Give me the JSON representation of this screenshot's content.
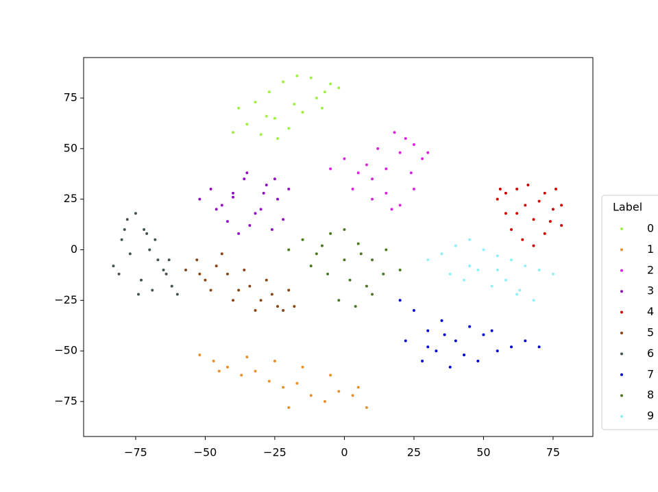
{
  "chart_data": {
    "type": "scatter",
    "xlim": [
      -93.7,
      89.3
    ],
    "ylim": [
      -92.3,
      95
    ],
    "xticks": [
      {
        "value": -75,
        "label": "−75"
      },
      {
        "value": -50,
        "label": "−50"
      },
      {
        "value": -25,
        "label": "−25"
      },
      0,
      25,
      50,
      75
    ],
    "yticks": [
      {
        "value": -75,
        "label": "−75"
      },
      {
        "value": -50,
        "label": "−50"
      },
      {
        "value": -25,
        "label": "−25"
      },
      0,
      25,
      50,
      75
    ],
    "legend_title": "Label",
    "legend_position": "right",
    "series": [
      {
        "name": "0",
        "color": "#9ef23f",
        "x": [
          -40,
          -35,
          -30,
          -25,
          -20,
          -15,
          -10,
          -5,
          -2,
          -38,
          -32,
          -27,
          -22,
          -17,
          -12,
          -7,
          -28,
          -18,
          -8,
          -24
        ],
        "y": [
          58,
          62,
          57,
          65,
          60,
          68,
          75,
          82,
          80,
          70,
          73,
          78,
          83,
          86,
          85,
          78,
          66,
          72,
          70,
          55
        ]
      },
      {
        "name": "1",
        "color": "#e8902a",
        "x": [
          -52,
          -47,
          -42,
          -37,
          -32,
          -27,
          -22,
          -17,
          -12,
          -7,
          -2,
          3,
          8,
          -45,
          -35,
          -25,
          -15,
          -5,
          5,
          -20
        ],
        "y": [
          -52,
          -55,
          -58,
          -62,
          -60,
          -65,
          -68,
          -66,
          -72,
          -75,
          -70,
          -72,
          -78,
          -60,
          -53,
          -55,
          -58,
          -62,
          -68,
          -78
        ]
      },
      {
        "name": "2",
        "color": "#e020e0",
        "x": [
          -5,
          0,
          5,
          10,
          15,
          20,
          25,
          28,
          22,
          18,
          12,
          8,
          3,
          15,
          20,
          25,
          30,
          10,
          17,
          24
        ],
        "y": [
          40,
          45,
          38,
          35,
          28,
          22,
          30,
          45,
          55,
          58,
          50,
          42,
          30,
          40,
          48,
          52,
          48,
          25,
          20,
          38
        ]
      },
      {
        "name": "3",
        "color": "#9010c0",
        "x": [
          -52,
          -48,
          -44,
          -40,
          -36,
          -32,
          -28,
          -24,
          -20,
          -22,
          -26,
          -30,
          -34,
          -38,
          -42,
          -46,
          -35,
          -29,
          -25,
          -40
        ],
        "y": [
          25,
          30,
          22,
          28,
          35,
          18,
          32,
          25,
          30,
          15,
          10,
          20,
          12,
          8,
          14,
          20,
          38,
          28,
          35,
          26
        ]
      },
      {
        "name": "4",
        "color": "#d00000",
        "x": [
          55,
          58,
          62,
          65,
          68,
          72,
          75,
          78,
          60,
          64,
          68,
          72,
          76,
          56,
          70,
          66,
          74,
          62,
          58,
          78
        ],
        "y": [
          25,
          18,
          30,
          22,
          15,
          28,
          20,
          12,
          10,
          5,
          2,
          8,
          30,
          30,
          24,
          32,
          14,
          18,
          28,
          22
        ]
      },
      {
        "name": "5",
        "color": "#8b4513",
        "x": [
          -57,
          -53,
          -50,
          -46,
          -42,
          -38,
          -34,
          -30,
          -26,
          -22,
          -18,
          -20,
          -28,
          -36,
          -44,
          -48,
          -40,
          -32,
          -24,
          -52
        ],
        "y": [
          -10,
          -5,
          -15,
          -8,
          -12,
          -20,
          -18,
          -25,
          -22,
          -30,
          -28,
          -20,
          -15,
          -10,
          -2,
          -20,
          -25,
          -30,
          -28,
          -12
        ]
      },
      {
        "name": "6",
        "color": "#475254",
        "x": [
          -83,
          -80,
          -78,
          -75,
          -72,
          -70,
          -67,
          -64,
          -62,
          -60,
          -77,
          -73,
          -69,
          -65,
          -81,
          -71,
          -68,
          -63,
          -74,
          -79
        ],
        "y": [
          -8,
          5,
          15,
          18,
          10,
          0,
          -5,
          -12,
          -18,
          -22,
          -2,
          -15,
          -20,
          -10,
          -12,
          8,
          5,
          -5,
          -22,
          10
        ]
      },
      {
        "name": "7",
        "color": "#0000d0",
        "x": [
          20,
          25,
          30,
          35,
          40,
          45,
          50,
          55,
          60,
          65,
          70,
          28,
          33,
          38,
          43,
          48,
          53,
          22,
          30,
          36
        ],
        "y": [
          -25,
          -30,
          -40,
          -35,
          -45,
          -38,
          -42,
          -50,
          -48,
          -45,
          -48,
          -55,
          -50,
          -58,
          -52,
          -55,
          -40,
          -45,
          -48,
          -42
        ]
      },
      {
        "name": "8",
        "color": "#4a7a20",
        "x": [
          -20,
          -15,
          -10,
          -5,
          0,
          5,
          10,
          15,
          20,
          -12,
          -6,
          2,
          8,
          14,
          -2,
          4,
          10,
          -8,
          0,
          6
        ],
        "y": [
          0,
          5,
          -2,
          8,
          10,
          3,
          -5,
          0,
          -10,
          -8,
          -12,
          -15,
          -18,
          -12,
          -25,
          -28,
          -22,
          2,
          -5,
          -2
        ]
      },
      {
        "name": "9",
        "color": "#90f0f8",
        "x": [
          30,
          35,
          40,
          45,
          50,
          55,
          60,
          65,
          70,
          75,
          38,
          43,
          48,
          53,
          58,
          63,
          68,
          45,
          55,
          62
        ],
        "y": [
          -5,
          -2,
          2,
          5,
          0,
          -3,
          -5,
          -8,
          -10,
          -12,
          -12,
          -15,
          -10,
          -18,
          -15,
          -20,
          -25,
          -8,
          -10,
          -22
        ]
      }
    ]
  }
}
